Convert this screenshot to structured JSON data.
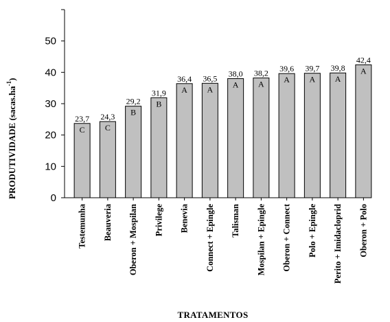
{
  "chart_data": {
    "type": "bar",
    "categories": [
      "Testemunha",
      "Beauveria",
      "Oberon + Mospilan",
      "Privilege",
      "Benevia",
      "Connect + Epingle",
      "Talisman",
      "Mospilan + Epingle",
      "Oberon + Connect",
      "Polo + Epingle",
      "Perito + Imidacloprid",
      "Oberon + Polo"
    ],
    "values": [
      23.7,
      24.3,
      29.2,
      31.9,
      36.4,
      36.5,
      38.0,
      38.2,
      39.6,
      39.7,
      39.8,
      42.4
    ],
    "value_labels": [
      "23,7",
      "24,3",
      "29,2",
      "31,9",
      "36,4",
      "36,5",
      "38,0",
      "38,2",
      "39,6",
      "39,7",
      "39,8",
      "42,4"
    ],
    "group_letters": [
      "C",
      "C",
      "B",
      "B",
      "A",
      "A",
      "A",
      "A",
      "A",
      "A",
      "A",
      "A"
    ],
    "ylim": [
      0,
      60
    ],
    "yticks": [
      0,
      10,
      20,
      30,
      40,
      50
    ],
    "xlabel": "TRATAMENTOS",
    "ylabel": "PRODUTIVIDADE (sacas.ha",
    "ylabel_sup": "-1",
    "ylabel_close": ")",
    "grid": false,
    "bar_color": "#c0c0c0"
  }
}
